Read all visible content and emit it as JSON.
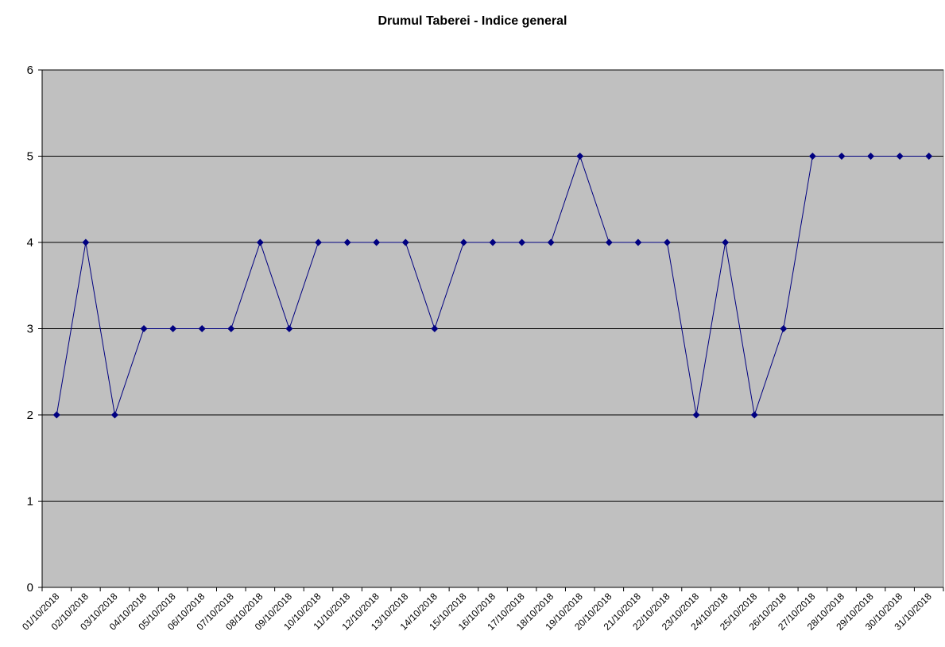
{
  "chart_data": {
    "type": "line",
    "title": "Drumul Taberei - Indice general",
    "xlabel": "",
    "ylabel": "",
    "ylim": [
      0,
      6
    ],
    "yticks": [
      0,
      1,
      2,
      3,
      4,
      5,
      6
    ],
    "grid": true,
    "legend": "none",
    "colors": {
      "plot_background": "#c0c0c0",
      "line": "#000080",
      "marker": "#000080",
      "gridline": "#000000"
    },
    "categories": [
      "01/10/2018",
      "02/10/2018",
      "03/10/2018",
      "04/10/2018",
      "05/10/2018",
      "06/10/2018",
      "07/10/2018",
      "08/10/2018",
      "09/10/2018",
      "10/10/2018",
      "11/10/2018",
      "12/10/2018",
      "13/10/2018",
      "14/10/2018",
      "15/10/2018",
      "16/10/2018",
      "17/10/2018",
      "18/10/2018",
      "19/10/2018",
      "20/10/2018",
      "21/10/2018",
      "22/10/2018",
      "23/10/2018",
      "24/10/2018",
      "25/10/2018",
      "26/10/2018",
      "27/10/2018",
      "28/10/2018",
      "29/10/2018",
      "30/10/2018",
      "31/10/2018"
    ],
    "series": [
      {
        "values": [
          2,
          4,
          2,
          3,
          3,
          3,
          3,
          4,
          3,
          4,
          4,
          4,
          4,
          3,
          4,
          4,
          4,
          4,
          5,
          4,
          4,
          4,
          2,
          4,
          2,
          3,
          5,
          5,
          5,
          5,
          5
        ]
      }
    ]
  }
}
